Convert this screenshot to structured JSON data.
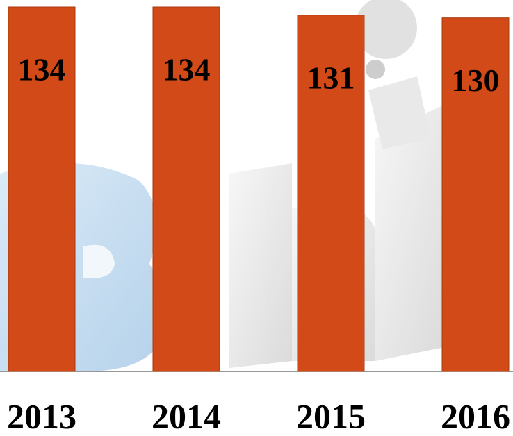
{
  "chart_data": {
    "type": "bar",
    "categories": [
      "2013",
      "2014",
      "2015",
      "2016"
    ],
    "values": [
      134,
      134,
      131,
      130
    ],
    "color": "#d24a17"
  }
}
